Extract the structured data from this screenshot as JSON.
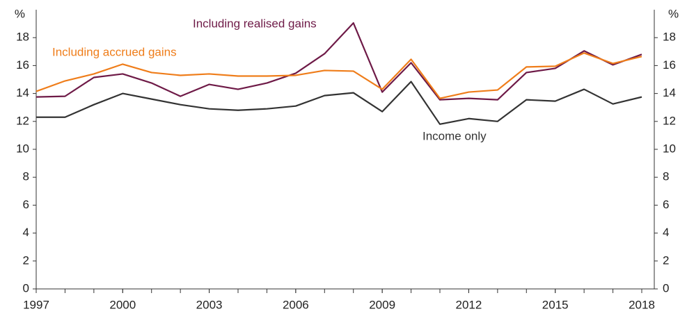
{
  "chart_data": {
    "type": "line",
    "y_unit": "%",
    "x": [
      1997,
      1998,
      1999,
      2000,
      2001,
      2002,
      2003,
      2004,
      2005,
      2006,
      2007,
      2008,
      2009,
      2010,
      2011,
      2012,
      2013,
      2014,
      2015,
      2016,
      2017,
      2018
    ],
    "xlim": [
      1997,
      2018
    ],
    "xticks": [
      1997,
      2000,
      2003,
      2006,
      2009,
      2012,
      2015,
      2018
    ],
    "ylim": [
      0,
      20
    ],
    "yticks": [
      0,
      2,
      4,
      6,
      8,
      10,
      12,
      14,
      16,
      18
    ],
    "series": [
      {
        "name": "Income only",
        "color": "#333333",
        "values": [
          12.3,
          12.3,
          13.2,
          14.0,
          13.6,
          13.2,
          12.9,
          12.8,
          12.9,
          13.1,
          13.85,
          14.05,
          12.7,
          14.85,
          11.8,
          12.2,
          12.0,
          13.55,
          13.45,
          14.3,
          13.25,
          13.75
        ]
      },
      {
        "name": "Including realised gains",
        "color": "#6e1a47",
        "values": [
          13.75,
          13.8,
          15.15,
          15.4,
          14.75,
          13.8,
          14.65,
          14.3,
          14.75,
          15.45,
          16.85,
          19.05,
          14.1,
          16.2,
          13.55,
          13.65,
          13.55,
          15.5,
          15.8,
          17.05,
          16.05,
          16.8
        ]
      },
      {
        "name": "Including accrued gains",
        "color": "#ef7d1a",
        "values": [
          14.15,
          14.9,
          15.4,
          16.1,
          15.5,
          15.3,
          15.4,
          15.25,
          15.25,
          15.3,
          15.65,
          15.6,
          14.3,
          16.45,
          13.65,
          14.1,
          14.25,
          15.9,
          15.95,
          16.9,
          16.15,
          16.65
        ]
      }
    ]
  }
}
